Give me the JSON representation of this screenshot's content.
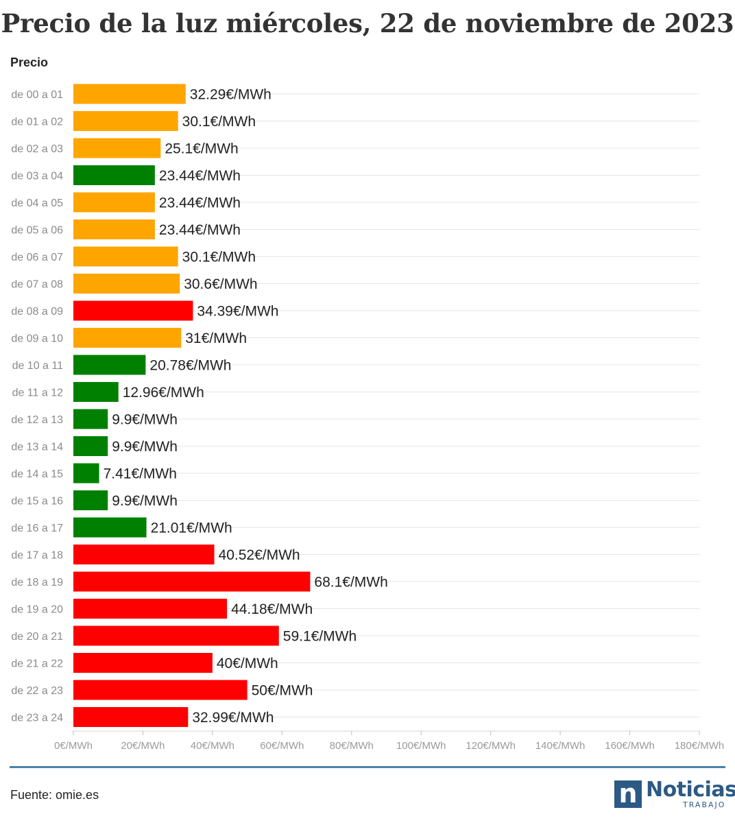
{
  "header": {
    "title": "Precio de la luz miércoles, 22 de noviembre de 2023",
    "column_label": "Precio"
  },
  "chart_data": {
    "type": "bar",
    "orientation": "horizontal",
    "title": "Precio de la luz miércoles, 22 de noviembre de 2023",
    "ylabel": "Precio",
    "unit": "€/MWh",
    "xlim": [
      0,
      180
    ],
    "x_ticks": [
      0,
      20,
      40,
      60,
      80,
      100,
      120,
      140,
      160,
      180
    ],
    "x_tick_labels": [
      "0€/MWh",
      "20€/MWh",
      "40€/MWh",
      "60€/MWh",
      "80€/MWh",
      "100€/MWh",
      "120€/MWh",
      "140€/MWh",
      "160€/MWh",
      "180€/MWh"
    ],
    "grid": true,
    "legend": "none",
    "categories": [
      "de 00 a 01",
      "de 01 a 02",
      "de 02 a 03",
      "de 03 a 04",
      "de 04 a 05",
      "de 05 a 06",
      "de 06 a 07",
      "de 07 a 08",
      "de 08 a 09",
      "de 09 a 10",
      "de 10 a 11",
      "de 11 a 12",
      "de 12 a 13",
      "de 13 a 14",
      "de 14 a 15",
      "de 15 a 16",
      "de 16 a 17",
      "de 17 a 18",
      "de 18 a 19",
      "de 19 a 20",
      "de 20 a 21",
      "de 21 a 22",
      "de 22 a 23",
      "de 23 a 24"
    ],
    "values": [
      32.29,
      30.1,
      25.1,
      23.44,
      23.44,
      23.44,
      30.1,
      30.6,
      34.39,
      31,
      20.78,
      12.96,
      9.9,
      9.9,
      7.41,
      9.9,
      21.01,
      40.52,
      68.1,
      44.18,
      59.1,
      40,
      50,
      32.99
    ],
    "value_labels": [
      "32.29€/MWh",
      "30.1€/MWh",
      "25.1€/MWh",
      "23.44€/MWh",
      "23.44€/MWh",
      "23.44€/MWh",
      "30.1€/MWh",
      "30.6€/MWh",
      "34.39€/MWh",
      "31€/MWh",
      "20.78€/MWh",
      "12.96€/MWh",
      "9.9€/MWh",
      "9.9€/MWh",
      "7.41€/MWh",
      "9.9€/MWh",
      "21.01€/MWh",
      "40.52€/MWh",
      "68.1€/MWh",
      "44.18€/MWh",
      "59.1€/MWh",
      "40€/MWh",
      "50€/MWh",
      "32.99€/MWh"
    ],
    "bar_colors": [
      "#ffa500",
      "#ffa500",
      "#ffa500",
      "#008000",
      "#ffa500",
      "#ffa500",
      "#ffa500",
      "#ffa500",
      "#ff0000",
      "#ffa500",
      "#008000",
      "#008000",
      "#008000",
      "#008000",
      "#008000",
      "#008000",
      "#008000",
      "#ff0000",
      "#ff0000",
      "#ff0000",
      "#ff0000",
      "#ff0000",
      "#ff0000",
      "#ff0000"
    ]
  },
  "footer": {
    "source": "Fuente: omie.es",
    "logo_main": "Noticias",
    "logo_sub": "TRABAJO",
    "logo_icon": "n-letter-icon",
    "accent_color": "#4a81a8",
    "brand_color": "#2c5a84"
  }
}
